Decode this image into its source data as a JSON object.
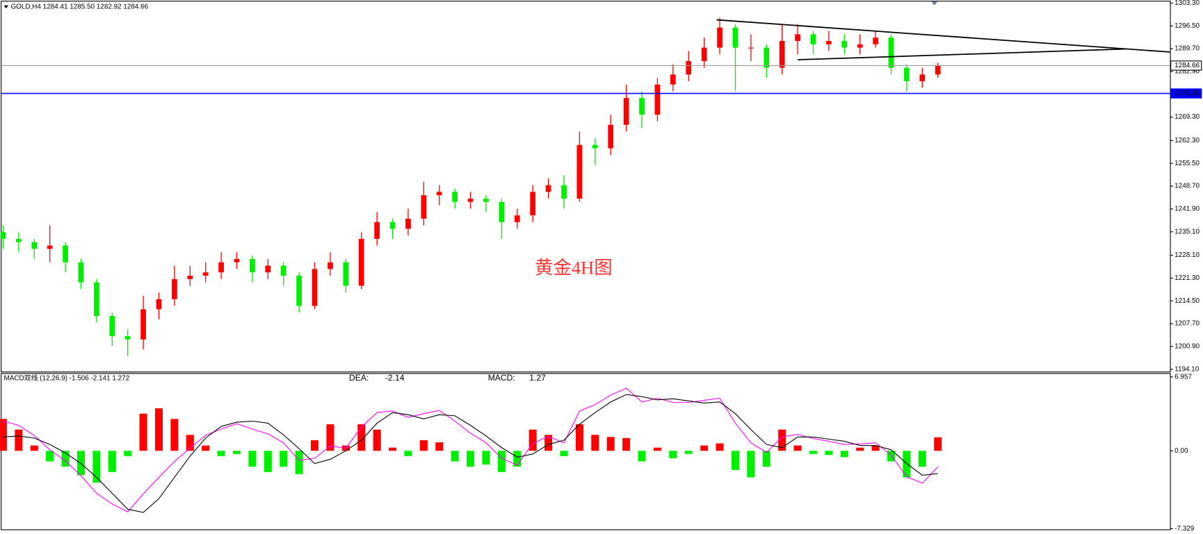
{
  "chart_data": [
    {
      "type": "candlestick",
      "title": "GOLD,H4 1284.41 1285.50 1282.92 1284.66",
      "annotation": "黄金4H图",
      "open": [
        1235,
        1233,
        1232,
        1230,
        1231,
        1226,
        1220,
        1210,
        1204,
        1203,
        1212,
        1215,
        1221,
        1222,
        1223,
        1226,
        1227,
        1223,
        1225,
        1222,
        1213,
        1224,
        1226,
        1219,
        1233,
        1238,
        1236,
        1239,
        1246,
        1247,
        1244,
        1245,
        1244,
        1238,
        1240,
        1247,
        1249,
        1245,
        1261,
        1260,
        1267,
        1275,
        1270,
        1279,
        1282,
        1286,
        1290,
        1296,
        1290,
        1290,
        1284,
        1292,
        1294,
        1291,
        1292,
        1290,
        1291,
        1293,
        1284,
        1280,
        1282
      ],
      "high": [
        1237,
        1235,
        1233,
        1237,
        1232,
        1227,
        1221,
        1211,
        1206,
        1216,
        1217,
        1225,
        1225,
        1226,
        1229,
        1229,
        1228,
        1227,
        1226,
        1223,
        1226,
        1229,
        1227,
        1235,
        1241,
        1239,
        1242,
        1250,
        1249,
        1248,
        1247,
        1246,
        1245,
        1242,
        1249,
        1251,
        1252,
        1265,
        1263,
        1270,
        1279,
        1277,
        1281,
        1285,
        1289,
        1293,
        1299,
        1297,
        1294,
        1291,
        1297,
        1297,
        1295,
        1295,
        1294,
        1294,
        1295,
        1294,
        1285,
        1284,
        1285.5
      ],
      "low": [
        1230,
        1229,
        1227,
        1226,
        1223,
        1218,
        1208,
        1201,
        1198,
        1200,
        1209,
        1213,
        1219,
        1220,
        1221,
        1224,
        1220,
        1221,
        1219,
        1211,
        1212,
        1222,
        1217,
        1218,
        1231,
        1233,
        1234,
        1237,
        1243,
        1242,
        1242,
        1241,
        1233,
        1236,
        1238,
        1245,
        1242,
        1244,
        1255,
        1258,
        1265,
        1266,
        1268,
        1277,
        1280,
        1284,
        1288,
        1277,
        1286,
        1281,
        1282,
        1288,
        1288,
        1289,
        1288,
        1288,
        1290,
        1282,
        1277,
        1278,
        1281
      ],
      "close": [
        1233,
        1232,
        1230,
        1231,
        1226,
        1220,
        1210,
        1204,
        1203,
        1212,
        1215,
        1221,
        1222,
        1223,
        1226,
        1227,
        1223,
        1225,
        1222,
        1213,
        1224,
        1226,
        1219,
        1233,
        1238,
        1236,
        1239,
        1246,
        1247,
        1244,
        1245,
        1244,
        1238,
        1240,
        1247,
        1249,
        1245,
        1261,
        1260,
        1267,
        1275,
        1270,
        1279,
        1282,
        1286,
        1290,
        1296,
        1290,
        1290,
        1284,
        1292,
        1294,
        1291,
        1292,
        1290,
        1291,
        1293,
        1284,
        1280,
        1282,
        1284.66
      ],
      "up_color": "#ff0000",
      "down_color": "#00ee00",
      "xlim": [
        -0.1,
        74.9
      ],
      "ylim": [
        1194.1,
        1303.3
      ],
      "yticks": [
        {
          "value": 1303.3,
          "label": "1303.30"
        },
        {
          "value": 1296.5,
          "label": "1296.50"
        },
        {
          "value": 1289.7,
          "label": "1289.70"
        },
        {
          "value": 1282.9,
          "label": "1282.90"
        },
        {
          "value": 1269.3,
          "label": "1269.30"
        },
        {
          "value": 1262.3,
          "label": "1262.30"
        },
        {
          "value": 1255.5,
          "label": "1255.50"
        },
        {
          "value": 1248.7,
          "label": "1248.70"
        },
        {
          "value": 1241.9,
          "label": "1241.90"
        },
        {
          "value": 1235.1,
          "label": "1235.10"
        },
        {
          "value": 1228.1,
          "label": "1228.10"
        },
        {
          "value": 1221.3,
          "label": "1221.30"
        },
        {
          "value": 1214.5,
          "label": "1214.50"
        },
        {
          "value": 1207.7,
          "label": "1207.70"
        },
        {
          "value": 1200.9,
          "label": "1200.90"
        },
        {
          "value": 1194.1,
          "label": "1194.10"
        }
      ],
      "hlines": [
        {
          "value": 1276.35,
          "label": "1276.35",
          "color": "#0000ff"
        },
        {
          "value": 1284.66,
          "label": "1284.66",
          "color": "#9a9a9a"
        }
      ],
      "trendlines": [
        {
          "x": [
            45.8,
            74.9
          ],
          "y": [
            1298.3,
            1288.7
          ]
        },
        {
          "x": [
            51,
            72
          ],
          "y": [
            1286.4,
            1289.6
          ]
        }
      ]
    },
    {
      "type": "macd",
      "title": "MACD双线 (12,26,9) -1.506 -2.141 1.272",
      "dea_label": "DEA:",
      "dea_value": -2.14,
      "dea_color": "#e6e600",
      "macd_label": "MACD:",
      "macd_value": 1.27,
      "macd_color": "#ff0000",
      "xlim": [
        -0.1,
        74.9
      ],
      "ylim": [
        -7.329,
        6.957
      ],
      "yticks": [
        6.957,
        {
          "value": 0,
          "label": "0.00"
        },
        -7.329
      ],
      "histogram": {
        "up_color": "#ff0000",
        "down_color": "#00ee00",
        "values": [
          3,
          2,
          0.5,
          -1,
          -1.5,
          -2.3,
          -3,
          -2,
          -0.5,
          3.5,
          4,
          3,
          1.5,
          0.5,
          -0.5,
          -0.3,
          -1.5,
          -2,
          -1.5,
          -2.2,
          1,
          2.5,
          0.5,
          2.5,
          2,
          0.3,
          -0.5,
          1,
          0.8,
          -1,
          -1.5,
          -1.3,
          -2,
          -1.5,
          2,
          1.5,
          -0.5,
          2.5,
          1.5,
          1.3,
          1.2,
          -1,
          0.3,
          -0.7,
          -0.3,
          0.5,
          0.7,
          -1.8,
          -2.5,
          -1.5,
          2,
          0.5,
          -0.3,
          -0.4,
          -0.6,
          0.3,
          0.5,
          -1,
          -2.5,
          -1.5,
          1.272
        ]
      },
      "series": [
        {
          "color": "#ff00ff",
          "values": [
            2.8,
            2.4,
            1.45,
            0.1,
            -0.95,
            -2.35,
            -4,
            -5,
            -5.75,
            -4.05,
            -2.5,
            -1,
            0.25,
            1.45,
            2.05,
            2.55,
            2.05,
            1.6,
            0.75,
            -0.9,
            -0.7,
            0.45,
            0.25,
            2.25,
            3.6,
            3.75,
            3.15,
            3.5,
            3.8,
            2.8,
            1.65,
            0.75,
            -0.7,
            -1.35,
            0.7,
            1.35,
            0.75,
            3.75,
            4.35,
            5.25,
            5.9,
            4.6,
            4.95,
            4.55,
            4.55,
            4.75,
            4.95,
            2.6,
            0.75,
            -0.15,
            1.3,
            1.55,
            1.15,
            0.9,
            0.6,
            0.65,
            0.75,
            -0.4,
            -2.45,
            -3.05,
            -1.506
          ]
        },
        {
          "color": "#000000",
          "values": [
            1.3,
            1.4,
            1.2,
            0.6,
            -0.2,
            -1.2,
            -2.5,
            -4,
            -5.5,
            -5.8,
            -4.5,
            -2.5,
            -0.5,
            1.2,
            2.3,
            2.7,
            2.8,
            2.6,
            1.5,
            0.2,
            -1.2,
            -0.8,
            0,
            1,
            2.6,
            3.6,
            3.4,
            3,
            3.4,
            3.3,
            2.4,
            1.4,
            0.3,
            -0.6,
            -0.3,
            0.6,
            1,
            2.5,
            3.6,
            4.6,
            5.3,
            5.1,
            4.8,
            4.9,
            4.7,
            4.5,
            4.6,
            3.5,
            2,
            0.6,
            0.3,
            1.3,
            1.3,
            1.1,
            0.9,
            0.5,
            0.5,
            0.1,
            -1.2,
            -2.3,
            -2.141
          ]
        }
      ]
    }
  ]
}
